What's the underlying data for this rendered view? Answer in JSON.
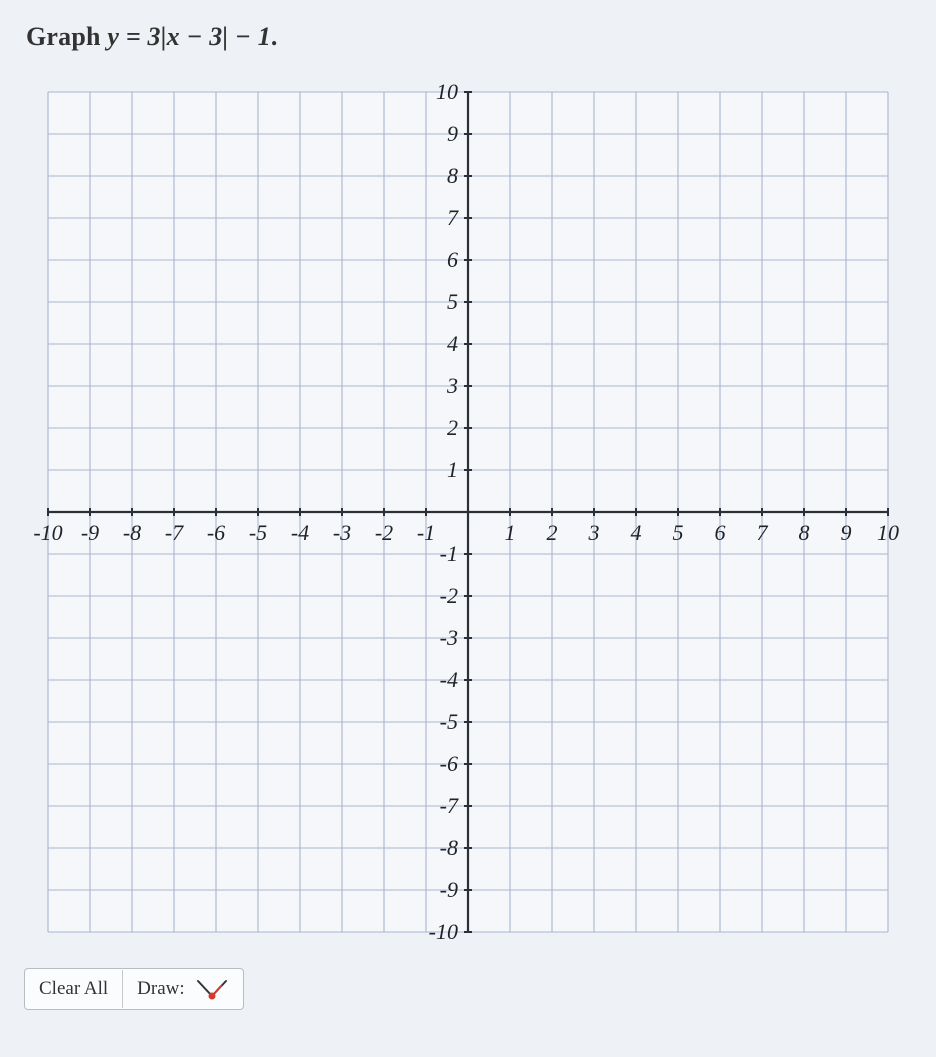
{
  "prompt": {
    "prefix": "Graph ",
    "math_html": "y = 3|x − 3| − 1",
    "suffix": "."
  },
  "chart": {
    "type": "cartesian-grid",
    "xlim": [
      -10,
      10
    ],
    "ylim": [
      -10,
      10
    ],
    "tick_step": 1,
    "x_ticks_shown": [
      -10,
      -9,
      -8,
      -7,
      -6,
      -5,
      -4,
      -3,
      -2,
      -1,
      1,
      2,
      3,
      4,
      5,
      6,
      7,
      8,
      9,
      10
    ],
    "y_ticks_shown": [
      10,
      9,
      8,
      7,
      6,
      5,
      4,
      3,
      2,
      1,
      -1,
      -2,
      -3,
      -4,
      -5,
      -6,
      -7,
      -8,
      -9,
      -10
    ],
    "background_color": "#f6f7fb",
    "grid_color": "#a8b4d2",
    "grid_stroke_width": 1.1,
    "axis_color": "#2b2f36",
    "axis_stroke_width": 2.2,
    "tick_length": 8,
    "tick_stroke_width": 2,
    "tick_label_color": "#1f2227",
    "tick_label_fontsize": 22,
    "tick_label_font": "Georgia, serif",
    "tick_label_style": "italic",
    "x_tick_label_dy": 28,
    "y_tick_label_dx": -10
  },
  "toolbar": {
    "clear_label": "Clear All",
    "draw_label": "Draw:",
    "draw_icon": {
      "line_color": "#333333",
      "accent_color": "#d63a2f",
      "point_radius": 3.5,
      "stroke_width": 2
    }
  },
  "layout": {
    "svg_side": 884,
    "plot_inset": 22
  }
}
